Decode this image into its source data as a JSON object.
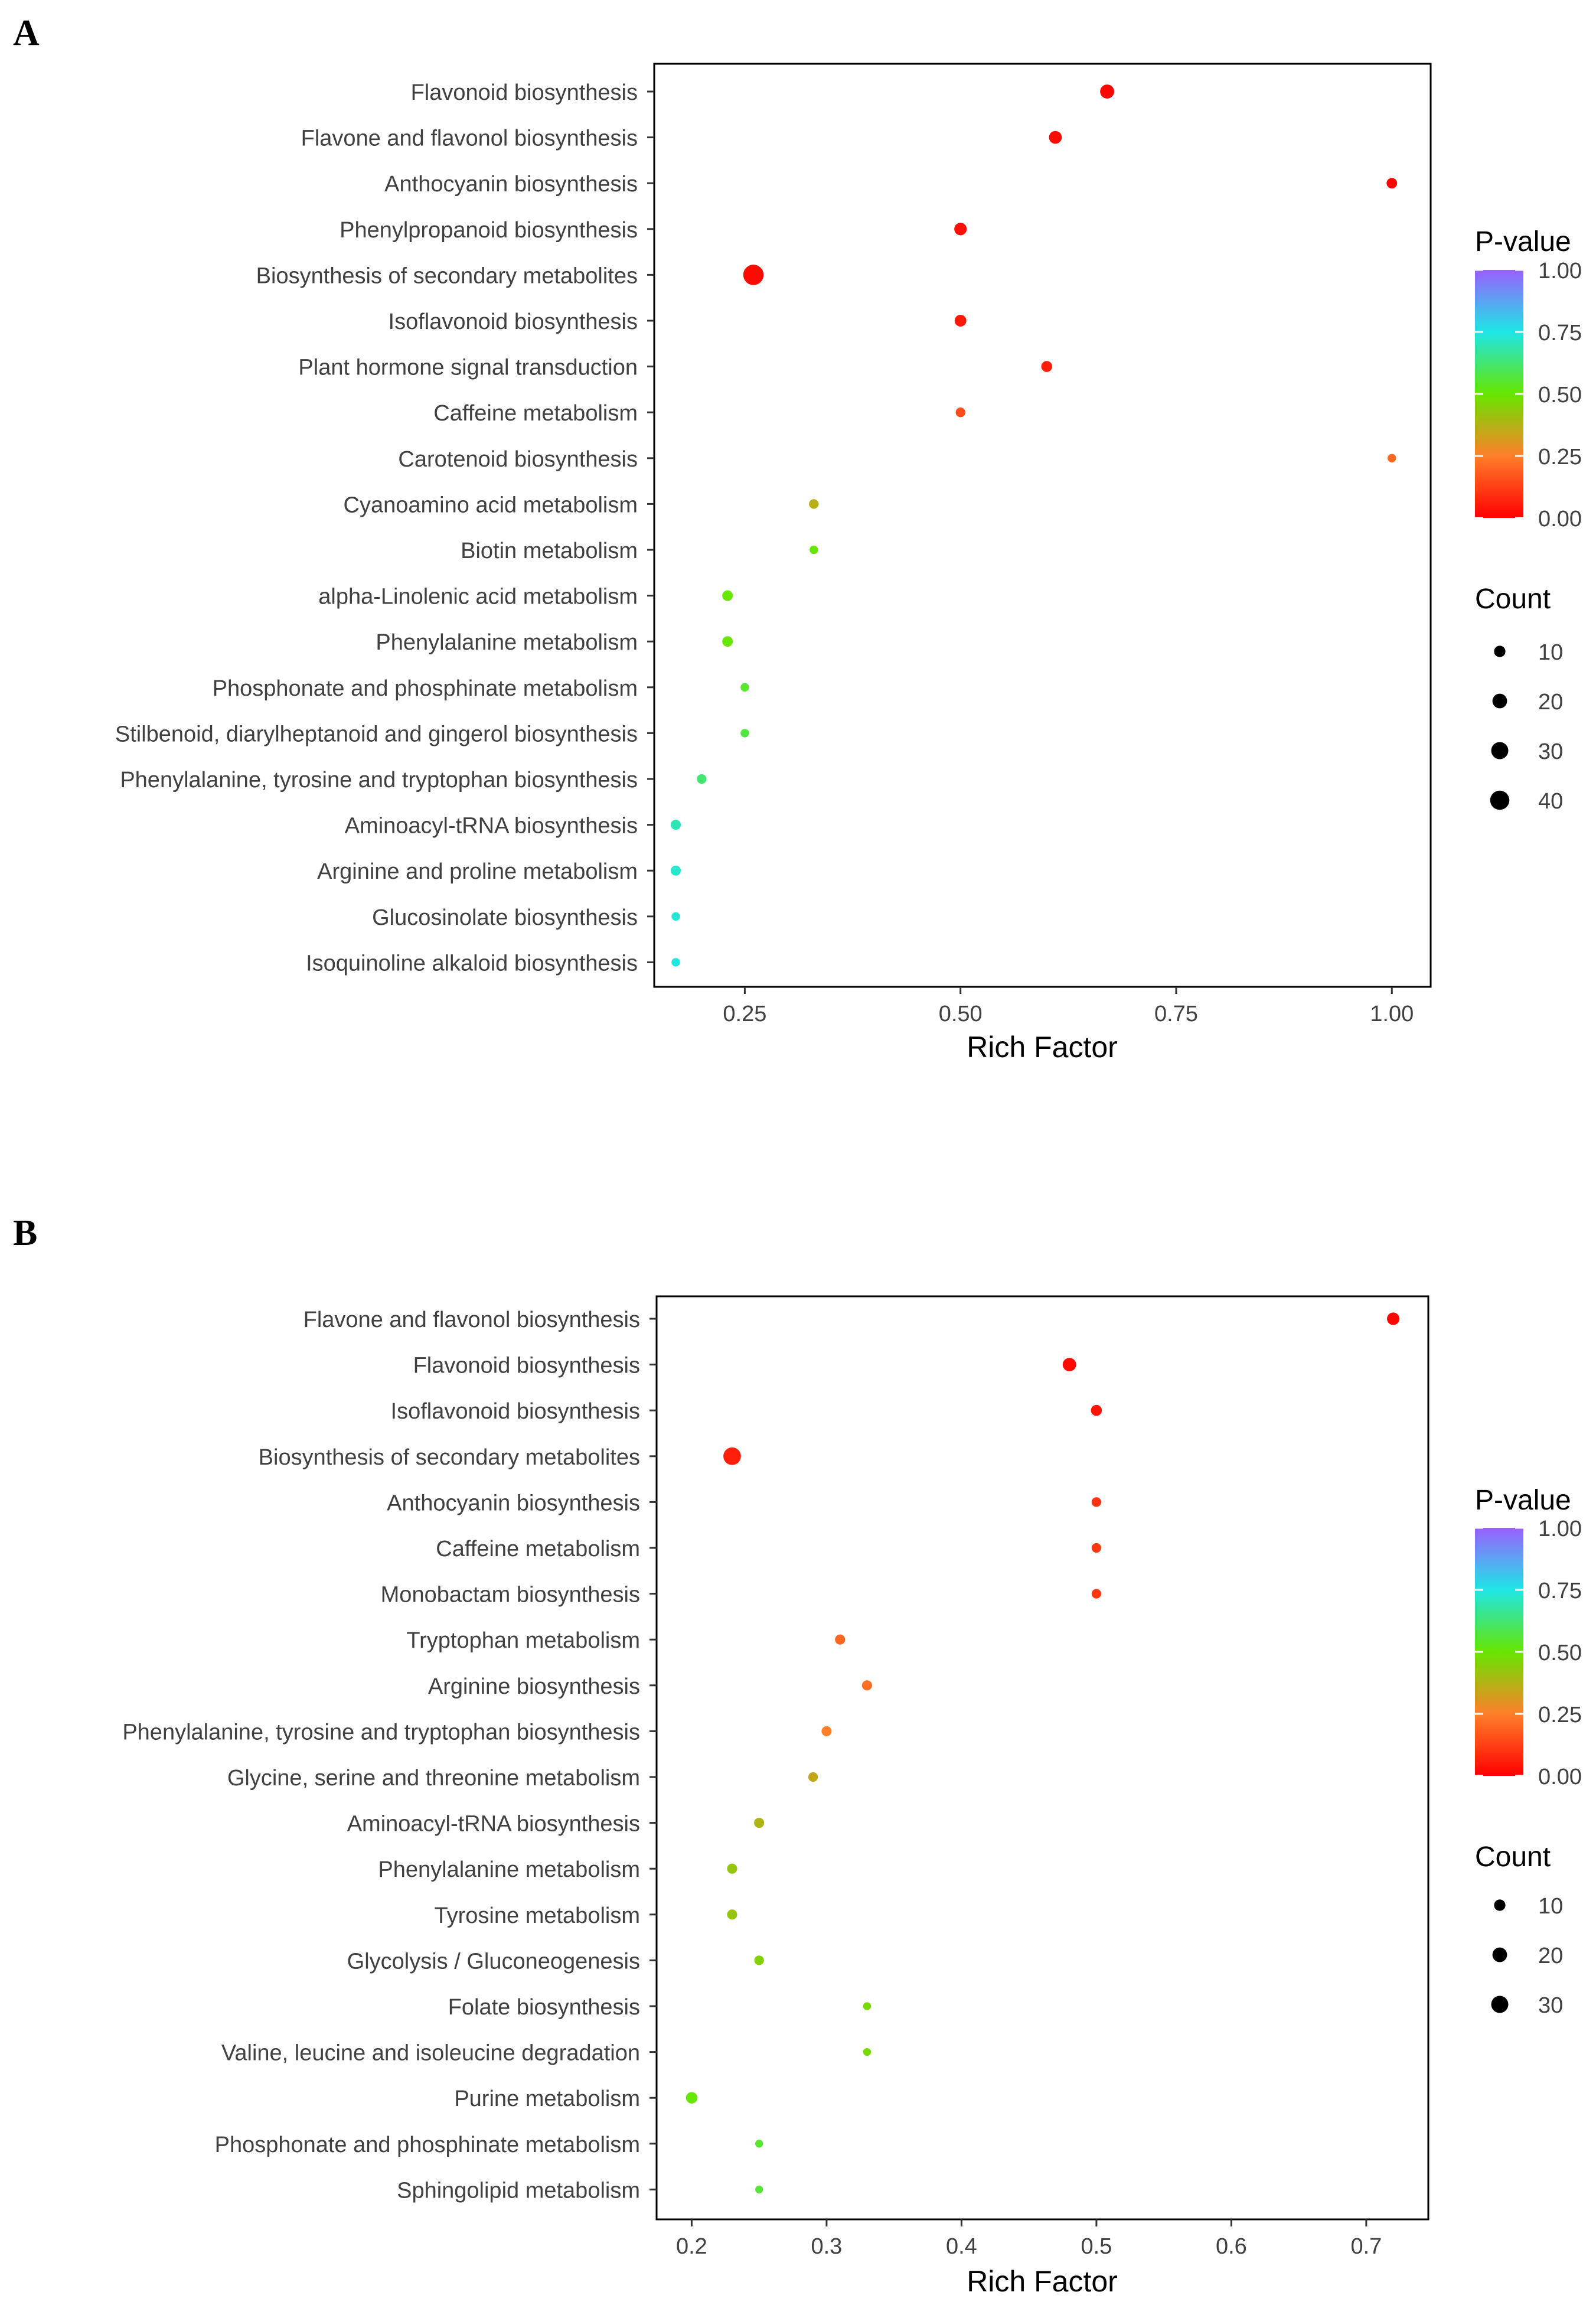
{
  "figure": {
    "panels": [
      "A",
      "B"
    ]
  },
  "colors": {
    "pvalue_scale": [
      "#ff0000",
      "#ff7f2a",
      "#66e600",
      "#1ee6e6",
      "#9b5fff"
    ]
  },
  "chart_data": [
    {
      "type": "scatter",
      "panel_label": "A",
      "xlabel": "Rich Factor",
      "ylabel": "",
      "xlim": [
        0.145,
        1.045
      ],
      "xticks": [
        0.25,
        0.5,
        0.75,
        1.0
      ],
      "xtick_labels": [
        "0.25",
        "0.50",
        "0.75",
        "1.00"
      ],
      "categories": [
        "Flavonoid biosynthesis",
        "Flavone and flavonol biosynthesis",
        "Anthocyanin biosynthesis",
        "Phenylpropanoid biosynthesis",
        "Biosynthesis of secondary metabolites",
        "Isoflavonoid biosynthesis",
        "Plant hormone signal transduction",
        "Caffeine metabolism",
        "Carotenoid biosynthesis",
        "Cyanoamino acid metabolism",
        "Biotin metabolism",
        "alpha-Linolenic acid metabolism",
        "Phenylalanine metabolism",
        "Phosphonate and phosphinate metabolism",
        "Stilbenoid, diarylheptanoid and gingerol biosynthesis",
        "Phenylalanine, tyrosine and tryptophan biosynthesis",
        "Aminoacyl-tRNA biosynthesis",
        "Arginine and proline metabolism",
        "Glucosinolate biosynthesis",
        "Isoquinoline alkaloid biosynthesis"
      ],
      "rich_factor": [
        0.67,
        0.61,
        1.0,
        0.5,
        0.26,
        0.5,
        0.6,
        0.5,
        1.0,
        0.33,
        0.33,
        0.23,
        0.23,
        0.25,
        0.25,
        0.2,
        0.17,
        0.17,
        0.17,
        0.17
      ],
      "count": [
        18,
        14,
        8,
        13,
        46,
        11,
        9,
        6,
        4,
        6,
        4,
        8,
        8,
        4,
        4,
        6,
        7,
        7,
        4,
        4
      ],
      "p_value": [
        0.01,
        0.02,
        0.01,
        0.03,
        0.02,
        0.05,
        0.06,
        0.15,
        0.2,
        0.37,
        0.5,
        0.5,
        0.5,
        0.55,
        0.57,
        0.62,
        0.7,
        0.72,
        0.73,
        0.74
      ],
      "legend": {
        "pvalue_title": "P-value",
        "pvalue_ticks": [
          1.0,
          0.75,
          0.5,
          0.25,
          0.0
        ],
        "pvalue_tick_labels": [
          "1.00",
          "0.75",
          "0.50",
          "0.25",
          "0.00"
        ],
        "count_title": "Count",
        "count_values": [
          10,
          20,
          30,
          40
        ],
        "count_labels": [
          "10",
          "20",
          "30",
          "40"
        ]
      }
    },
    {
      "type": "scatter",
      "panel_label": "B",
      "xlabel": "Rich Factor",
      "ylabel": "",
      "xlim": [
        0.174,
        0.746
      ],
      "xticks": [
        0.2,
        0.3,
        0.4,
        0.5,
        0.6,
        0.7
      ],
      "xtick_labels": [
        "0.2",
        "0.3",
        "0.4",
        "0.5",
        "0.6",
        "0.7"
      ],
      "categories": [
        "Flavone and flavonol biosynthesis",
        "Flavonoid biosynthesis",
        "Isoflavonoid biosynthesis",
        "Biosynthesis of secondary metabolites",
        "Anthocyanin biosynthesis",
        "Caffeine metabolism",
        "Monobactam biosynthesis",
        "Tryptophan metabolism",
        "Arginine biosynthesis",
        "Phenylalanine, tyrosine and tryptophan biosynthesis",
        "Glycine, serine and threonine metabolism",
        "Aminoacyl-tRNA biosynthesis",
        "Phenylalanine metabolism",
        "Tyrosine metabolism",
        "Glycolysis / Gluconeogenesis",
        "Folate biosynthesis",
        "Valine, leucine and isoleucine degradation",
        "Purine metabolism",
        "Phosphonate and phosphinate metabolism",
        "Sphingolipid metabolism"
      ],
      "rich_factor": [
        0.72,
        0.48,
        0.5,
        0.23,
        0.5,
        0.5,
        0.5,
        0.31,
        0.33,
        0.3,
        0.29,
        0.25,
        0.23,
        0.23,
        0.25,
        0.33,
        0.33,
        0.2,
        0.25,
        0.25
      ],
      "count": [
        13,
        16,
        9,
        32,
        6,
        6,
        6,
        7,
        7,
        7,
        6,
        7,
        7,
        7,
        6,
        3,
        3,
        10,
        3,
        3
      ],
      "p_value": [
        0.01,
        0.02,
        0.04,
        0.06,
        0.1,
        0.11,
        0.11,
        0.2,
        0.22,
        0.25,
        0.35,
        0.38,
        0.42,
        0.42,
        0.45,
        0.47,
        0.47,
        0.5,
        0.55,
        0.56
      ],
      "legend": {
        "pvalue_title": "P-value",
        "pvalue_ticks": [
          1.0,
          0.75,
          0.5,
          0.25,
          0.0
        ],
        "pvalue_tick_labels": [
          "1.00",
          "0.75",
          "0.50",
          "0.25",
          "0.00"
        ],
        "count_title": "Count",
        "count_values": [
          10,
          20,
          30
        ],
        "count_labels": [
          "10",
          "20",
          "30"
        ]
      }
    }
  ]
}
